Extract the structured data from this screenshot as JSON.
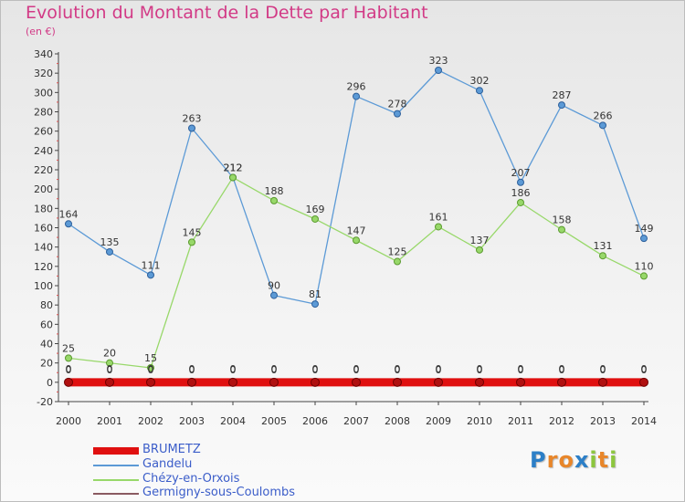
{
  "chart_data": {
    "type": "line",
    "title": "Evolution du Montant de la Dette par Habitant",
    "unit_label": "(en €)",
    "x": [
      "2000",
      "2001",
      "2002",
      "2003",
      "2004",
      "2005",
      "2006",
      "2007",
      "2008",
      "2009",
      "2010",
      "2011",
      "2012",
      "2013",
      "2014"
    ],
    "ylim": [
      -20,
      340
    ],
    "yticks": [
      -20,
      0,
      20,
      40,
      60,
      80,
      100,
      120,
      140,
      160,
      180,
      200,
      220,
      240,
      260,
      280,
      300,
      320,
      340
    ],
    "grid": false,
    "legend_position": "bottom-left",
    "series": [
      {
        "name": "BRUMETZ",
        "color": "#e01010",
        "values": [
          0,
          0,
          0,
          0,
          0,
          0,
          0,
          0,
          0,
          0,
          0,
          0,
          0,
          0,
          0
        ]
      },
      {
        "name": "Gandelu",
        "color": "#5c9ad6",
        "values": [
          164,
          135,
          111,
          263,
          212,
          90,
          81,
          296,
          278,
          323,
          302,
          207,
          287,
          266,
          149
        ]
      },
      {
        "name": "Chézy-en-Orxois",
        "color": "#98d86a",
        "values": [
          25,
          20,
          15,
          145,
          212,
          188,
          169,
          147,
          125,
          161,
          137,
          186,
          158,
          131,
          110
        ]
      },
      {
        "name": "Germigny-sous-Coulombs",
        "color": "#8a5a60",
        "values": [
          0,
          0,
          0,
          0,
          0,
          0,
          0,
          0,
          0,
          0,
          0,
          0,
          0,
          0,
          0
        ]
      }
    ]
  },
  "logo": {
    "letters": [
      "P",
      "r",
      "o",
      "x",
      "i",
      "t",
      "i"
    ],
    "colors": [
      "#2c7fc7",
      "#e8862a",
      "#e8862a",
      "#2c7fc7",
      "#8cc63e",
      "#e8862a",
      "#8cc63e"
    ]
  }
}
